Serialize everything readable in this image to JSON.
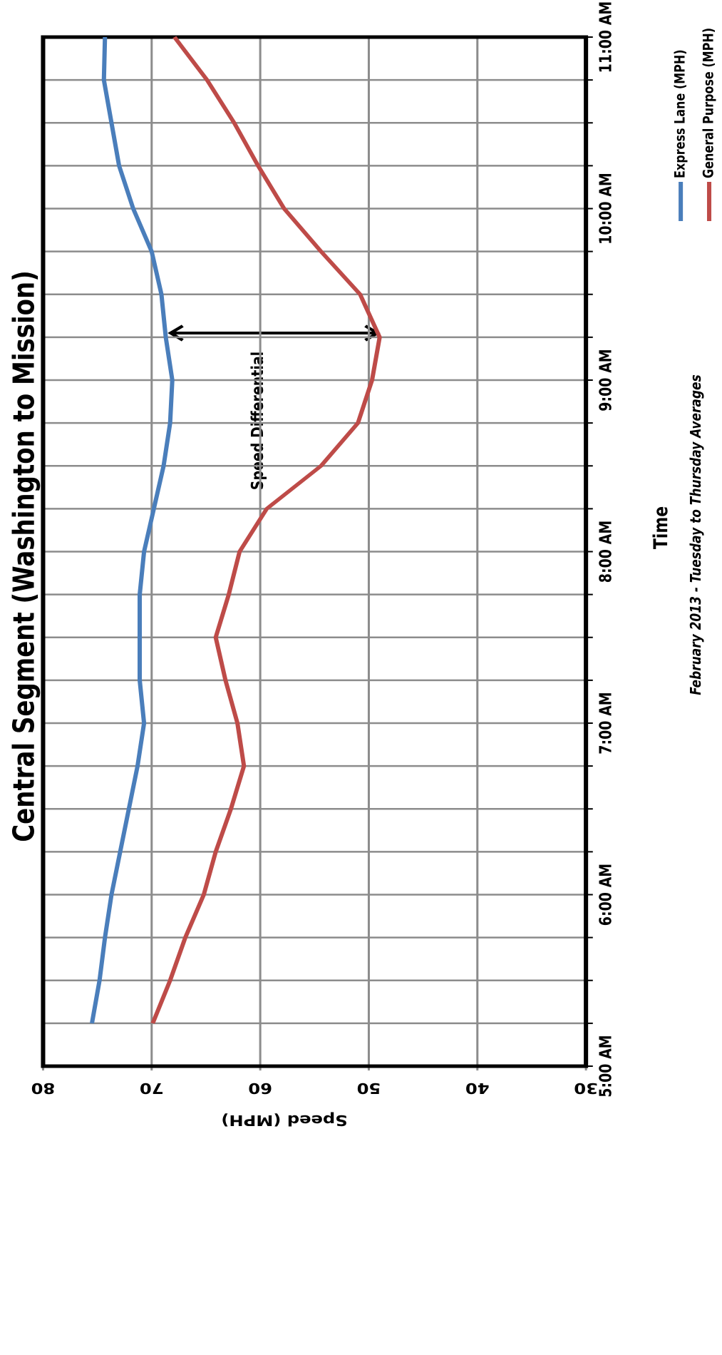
{
  "chart_data": {
    "type": "line",
    "title": "Central Segment (Washington to Mission)",
    "subtitle": "February 2013 - Tuesday to Thursday Averages",
    "x_label": "Time",
    "y_label": "Speed (MPH)",
    "annotation": "Speed Differential",
    "categories": [
      "5:00 AM",
      null,
      null,
      null,
      "6:00 AM",
      null,
      null,
      null,
      "7:00 AM",
      null,
      null,
      null,
      "8:00 AM",
      null,
      null,
      null,
      "9:00 AM",
      null,
      null,
      null,
      "10:00 AM",
      null,
      null,
      null,
      "11:00 AM"
    ],
    "series": [
      {
        "name": "Express Lane (MPH)",
        "color": "#4a7ebb",
        "values": [
          null,
          75.5,
          74.8,
          74.3,
          73.7,
          72.9,
          72.1,
          71.3,
          70.7,
          71.1,
          71.1,
          71.1,
          70.7,
          69.8,
          68.9,
          68.3,
          68.1,
          68.7,
          69.1,
          70.0,
          71.7,
          73.0,
          73.7,
          74.4,
          74.3
        ]
      },
      {
        "name": "General Purpose (MPH)",
        "color": "#be4b48",
        "values": [
          null,
          69.9,
          68.3,
          66.9,
          65.2,
          64.1,
          62.7,
          61.5,
          62.1,
          63.2,
          64.1,
          62.9,
          61.9,
          59.4,
          54.4,
          51.0,
          49.7,
          49.0,
          50.8,
          54.4,
          57.8,
          60.2,
          62.4,
          64.9,
          67.9
        ]
      }
    ],
    "ylim": [
      30,
      80
    ],
    "yticks": [
      30,
      40,
      50,
      60,
      70,
      80
    ],
    "grid": true,
    "legend": "bottom-right"
  }
}
